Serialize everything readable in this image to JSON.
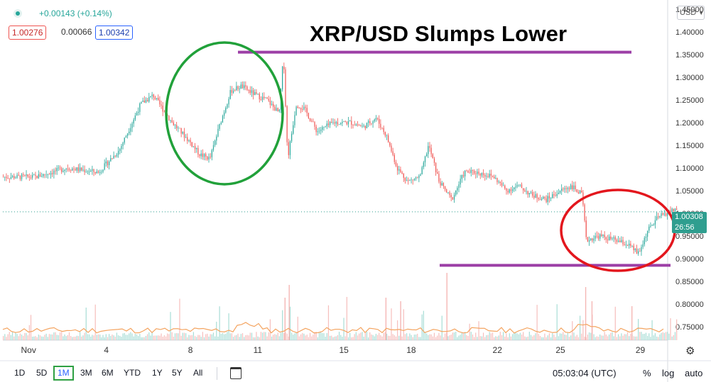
{
  "header": {
    "change": "+0.00143 (+0.14%)",
    "bid": "1.00276",
    "spread": "0.00066",
    "ask": "1.00342",
    "currency": "USD",
    "current_price": "1.00308",
    "countdown": "26:56"
  },
  "chart_title": "XRP/USD Slumps Lower",
  "bottom_bar": {
    "ranges": [
      "1D",
      "5D",
      "1M",
      "3M",
      "6M",
      "YTD",
      "1Y",
      "5Y",
      "All"
    ],
    "active_range": "1M",
    "time": "05:03:04 (UTC)",
    "percent": "%",
    "log": "log",
    "auto": "auto"
  },
  "colors": {
    "up": "#26a69a",
    "down": "#ef5350",
    "resistance": "#9c3fa6",
    "circle_green": "#21a13a",
    "circle_red": "#e3161d",
    "volume_ma": "#f4a460"
  },
  "chart_data": {
    "type": "candlestick",
    "title": "XRP/USD Slumps Lower",
    "x_ticks": [
      "Nov",
      "4",
      "8",
      "11",
      "15",
      "18",
      "22",
      "25",
      "29"
    ],
    "y_ticks": [
      0.75,
      0.8,
      0.85,
      0.9,
      0.95,
      1.0,
      1.05,
      1.1,
      1.15,
      1.2,
      1.25,
      1.3,
      1.35,
      1.4,
      1.45
    ],
    "ylim": [
      0.72,
      1.47
    ],
    "last_price": 1.00308,
    "price_path": [
      [
        0,
        1.08
      ],
      [
        1.5,
        1.1
      ],
      [
        3,
        1.09
      ],
      [
        4,
        1.14
      ],
      [
        5,
        1.24
      ],
      [
        5.6,
        1.26
      ],
      [
        6.5,
        1.2
      ],
      [
        7.3,
        1.16
      ],
      [
        7.8,
        1.13
      ],
      [
        8.3,
        1.12
      ],
      [
        8.8,
        1.2
      ],
      [
        9.3,
        1.27
      ],
      [
        9.8,
        1.28
      ],
      [
        10.5,
        1.26
      ],
      [
        11,
        1.25
      ],
      [
        11.6,
        1.22
      ],
      [
        11.8,
        1.35
      ],
      [
        12.0,
        1.12
      ],
      [
        12.4,
        1.24
      ],
      [
        12.8,
        1.23
      ],
      [
        13.4,
        1.18
      ],
      [
        14.2,
        1.2
      ],
      [
        15.0,
        1.2
      ],
      [
        15.6,
        1.19
      ],
      [
        16.2,
        1.21
      ],
      [
        16.7,
        1.17
      ],
      [
        17.2,
        1.1
      ],
      [
        17.7,
        1.07
      ],
      [
        18.3,
        1.08
      ],
      [
        18.7,
        1.15
      ],
      [
        19.2,
        1.07
      ],
      [
        19.8,
        1.03
      ],
      [
        20.4,
        1.09
      ],
      [
        21.0,
        1.09
      ],
      [
        21.8,
        1.08
      ],
      [
        22.4,
        1.05
      ],
      [
        23.0,
        1.06
      ],
      [
        23.6,
        1.04
      ],
      [
        24.3,
        1.03
      ],
      [
        25.0,
        1.05
      ],
      [
        25.5,
        1.06
      ],
      [
        26.0,
        1.04
      ],
      [
        26.2,
        0.94
      ],
      [
        26.8,
        0.95
      ],
      [
        27.6,
        0.94
      ],
      [
        28.2,
        0.93
      ],
      [
        28.7,
        0.91
      ],
      [
        29.1,
        0.96
      ],
      [
        29.6,
        0.99
      ],
      [
        30.0,
        1.0
      ],
      [
        30.5,
        1.01
      ]
    ],
    "annotations": {
      "resistance_line": 1.355,
      "support_line": 0.885
    }
  }
}
